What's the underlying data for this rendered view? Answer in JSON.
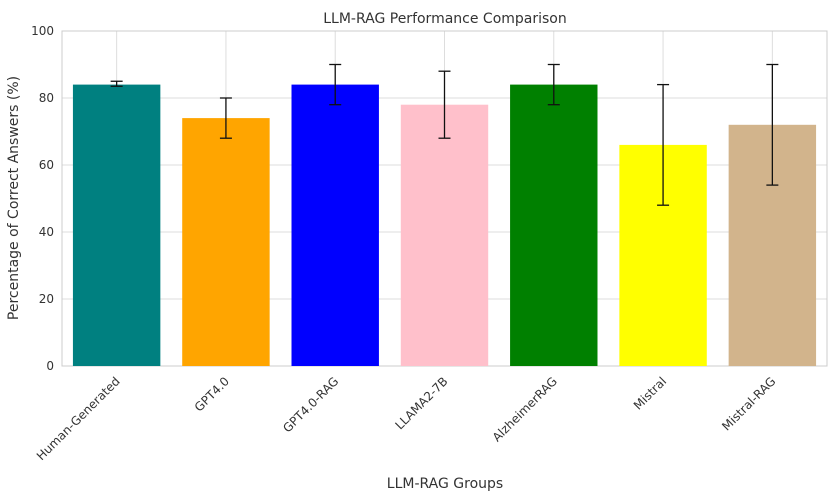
{
  "chart_data": {
    "type": "bar",
    "title": "LLM-RAG Performance Comparison",
    "xlabel": "LLM-RAG Groups",
    "ylabel": "Percentage of Correct Answers (%)",
    "ylim": [
      0,
      100
    ],
    "yticks": [
      0,
      20,
      40,
      60,
      80,
      100
    ],
    "grid": true,
    "categories": [
      "Human-Generated",
      "GPT4.0",
      "GPT4.0-RAG",
      "LLAMA2-7B",
      "AlzheimerRAG",
      "Mistral",
      "Mistral-RAG"
    ],
    "values": [
      84,
      74,
      84,
      78,
      84,
      66,
      72
    ],
    "error_low": [
      83.5,
      68,
      78,
      68,
      78,
      48,
      54
    ],
    "error_high": [
      85,
      80,
      90,
      88,
      90,
      84,
      90
    ],
    "colors": [
      "#008080",
      "#FFA500",
      "#0000FF",
      "#FFC0CB",
      "#008000",
      "#FFFF00",
      "#D2B48C"
    ]
  }
}
